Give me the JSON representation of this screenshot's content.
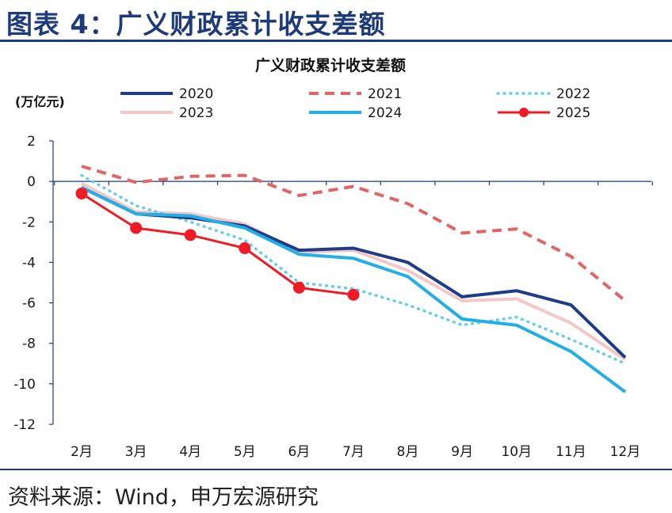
{
  "header": {
    "title": "图表 4：广义财政累计收支差额"
  },
  "footer": {
    "source": "资料来源：Wind，申万宏源研究"
  },
  "chart_data": {
    "type": "line",
    "title": "广义财政累计收支差额",
    "ylabel": "(万亿元)",
    "xlabel": "",
    "categories": [
      "2月",
      "3月",
      "4月",
      "5月",
      "6月",
      "7月",
      "8月",
      "9月",
      "10月",
      "11月",
      "12月"
    ],
    "ylim": [
      -12,
      2
    ],
    "yticks": [
      2,
      0,
      -2,
      -4,
      -6,
      -8,
      -10,
      -12
    ],
    "grid": false,
    "legend": "top",
    "series": [
      {
        "name": "2020",
        "color": "#1f3c88",
        "style": "solid",
        "values": [
          -0.3,
          -1.6,
          -1.8,
          -2.2,
          -3.4,
          -3.3,
          -4.0,
          -5.7,
          -5.4,
          -6.1,
          -8.7
        ]
      },
      {
        "name": "2021",
        "color": "#e06666",
        "style": "dashed",
        "values": [
          0.75,
          -0.05,
          0.25,
          0.3,
          -0.7,
          -0.25,
          -1.1,
          -2.55,
          -2.35,
          -3.7,
          -5.9
        ]
      },
      {
        "name": "2022",
        "color": "#66ccee",
        "style": "dotted",
        "values": [
          0.3,
          -1.2,
          -2.0,
          -2.9,
          -5.0,
          -5.3,
          -6.1,
          -7.1,
          -6.7,
          -7.8,
          -9.0
        ]
      },
      {
        "name": "2023",
        "color": "#f4c7c7",
        "style": "solid",
        "values": [
          -0.1,
          -1.5,
          -1.6,
          -2.1,
          -3.5,
          -3.4,
          -4.4,
          -5.9,
          -5.8,
          -7.0,
          -8.8
        ]
      },
      {
        "name": "2024",
        "color": "#22aee6",
        "style": "solid",
        "values": [
          -0.3,
          -1.6,
          -1.7,
          -2.3,
          -3.6,
          -3.8,
          -4.7,
          -6.8,
          -7.1,
          -8.4,
          -10.4
        ]
      },
      {
        "name": "2025",
        "color": "#ee1c25",
        "style": "marker",
        "values": [
          -0.6,
          -2.3,
          -2.65,
          -3.3,
          -5.25,
          -5.6,
          null,
          null,
          null,
          null,
          null
        ]
      }
    ]
  }
}
